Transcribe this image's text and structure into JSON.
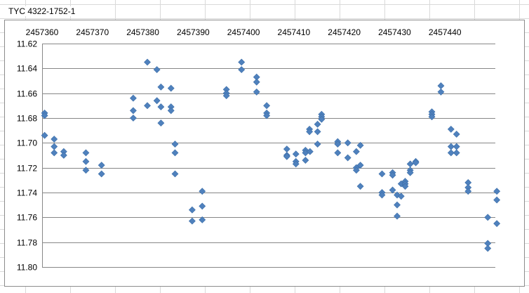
{
  "sheet": {
    "title_cell": "TYC 4322-1752-1"
  },
  "chart_data": {
    "type": "scatter",
    "title": "",
    "xlabel": "",
    "ylabel": "",
    "xlim": [
      2457360,
      2457450
    ],
    "ylim": [
      11.62,
      11.8
    ],
    "y_reversed": true,
    "x_axis_position": "top",
    "xticks": [
      2457360,
      2457370,
      2457380,
      2457390,
      2457400,
      2457410,
      2457420,
      2457430,
      2457440
    ],
    "xtick_labels": [
      "2457360",
      "2457370",
      "2457380",
      "2457390",
      "2457400",
      "2457410",
      "2457420",
      "2457430",
      "2457440"
    ],
    "yticks": [
      11.62,
      11.64,
      11.66,
      11.68,
      11.7,
      11.72,
      11.74,
      11.76,
      11.78,
      11.8
    ],
    "ytick_labels": [
      "11.62",
      "11.64",
      "11.66",
      "11.68",
      "11.70",
      "11.72",
      "11.74",
      "11.76",
      "11.78",
      "11.80"
    ],
    "grid": "horizontal",
    "legend": "none",
    "marker": "diamond",
    "color": "#4f81bd",
    "series": [
      {
        "points": [
          [
            2457360.5,
            11.676
          ],
          [
            2457360.5,
            11.678
          ],
          [
            2457360.5,
            11.694
          ],
          [
            2457362.4,
            11.697
          ],
          [
            2457362.4,
            11.703
          ],
          [
            2457362.4,
            11.708
          ],
          [
            2457364.3,
            11.707
          ],
          [
            2457364.3,
            11.71
          ],
          [
            2457368.7,
            11.708
          ],
          [
            2457368.7,
            11.715
          ],
          [
            2457368.7,
            11.722
          ],
          [
            2457371.8,
            11.718
          ],
          [
            2457371.8,
            11.725
          ],
          [
            2457378.1,
            11.664
          ],
          [
            2457378.1,
            11.674
          ],
          [
            2457378.1,
            11.68
          ],
          [
            2457380.9,
            11.635
          ],
          [
            2457380.9,
            11.67
          ],
          [
            2457382.8,
            11.641
          ],
          [
            2457382.8,
            11.666
          ],
          [
            2457383.6,
            11.655
          ],
          [
            2457383.6,
            11.671
          ],
          [
            2457383.6,
            11.684
          ],
          [
            2457385.6,
            11.656
          ],
          [
            2457385.6,
            11.671
          ],
          [
            2457385.6,
            11.674
          ],
          [
            2457386.4,
            11.701
          ],
          [
            2457386.4,
            11.708
          ],
          [
            2457386.4,
            11.725
          ],
          [
            2457389.8,
            11.754
          ],
          [
            2457389.8,
            11.763
          ],
          [
            2457391.8,
            11.739
          ],
          [
            2457391.8,
            11.751
          ],
          [
            2457391.8,
            11.762
          ],
          [
            2457396.6,
            11.657
          ],
          [
            2457396.6,
            11.66
          ],
          [
            2457396.6,
            11.662
          ],
          [
            2457399.6,
            11.635
          ],
          [
            2457399.6,
            11.641
          ],
          [
            2457402.6,
            11.647
          ],
          [
            2457402.6,
            11.651
          ],
          [
            2457402.6,
            11.659
          ],
          [
            2457404.6,
            11.67
          ],
          [
            2457404.6,
            11.676
          ],
          [
            2457404.6,
            11.678
          ],
          [
            2457408.6,
            11.705
          ],
          [
            2457408.6,
            11.71
          ],
          [
            2457408.6,
            11.711
          ],
          [
            2457410.4,
            11.709
          ],
          [
            2457410.4,
            11.715
          ],
          [
            2457410.4,
            11.717
          ],
          [
            2457412.3,
            11.706
          ],
          [
            2457412.3,
            11.708
          ],
          [
            2457412.3,
            11.714
          ],
          [
            2457413.2,
            11.707
          ],
          [
            2457413.1,
            11.689
          ],
          [
            2457413.1,
            11.691
          ],
          [
            2457414.7,
            11.685
          ],
          [
            2457414.7,
            11.691
          ],
          [
            2457414.7,
            11.701
          ],
          [
            2457415.5,
            11.677
          ],
          [
            2457415.5,
            11.679
          ],
          [
            2457415.5,
            11.681
          ],
          [
            2457418.7,
            11.699
          ],
          [
            2457418.7,
            11.701
          ],
          [
            2457418.7,
            11.708
          ],
          [
            2457420.7,
            11.7
          ],
          [
            2457420.7,
            11.712
          ],
          [
            2457422.4,
            11.707
          ],
          [
            2457422.4,
            11.72
          ],
          [
            2457422.4,
            11.722
          ],
          [
            2457423.2,
            11.702
          ],
          [
            2457423.2,
            11.718
          ],
          [
            2457423.2,
            11.735
          ],
          [
            2457427.5,
            11.725
          ],
          [
            2457427.5,
            11.74
          ],
          [
            2457427.5,
            11.742
          ],
          [
            2457429.6,
            11.724
          ],
          [
            2457429.6,
            11.726
          ],
          [
            2457429.6,
            11.738
          ],
          [
            2457430.5,
            11.742
          ],
          [
            2457430.5,
            11.75
          ],
          [
            2457430.5,
            11.759
          ],
          [
            2457431.3,
            11.733
          ],
          [
            2457431.3,
            11.743
          ],
          [
            2457432.1,
            11.731
          ],
          [
            2457432.1,
            11.733
          ],
          [
            2457432.1,
            11.735
          ],
          [
            2457433.1,
            11.717
          ],
          [
            2457433.1,
            11.722
          ],
          [
            2457433.1,
            11.724
          ],
          [
            2457434.2,
            11.715
          ],
          [
            2457434.2,
            11.716
          ],
          [
            2457437.4,
            11.675
          ],
          [
            2457437.4,
            11.677
          ],
          [
            2457437.4,
            11.679
          ],
          [
            2457439.2,
            11.654
          ],
          [
            2457439.2,
            11.659
          ],
          [
            2457441.2,
            11.689
          ],
          [
            2457441.2,
            11.703
          ],
          [
            2457441.2,
            11.708
          ],
          [
            2457442.3,
            11.693
          ],
          [
            2457442.3,
            11.703
          ],
          [
            2457442.3,
            11.708
          ],
          [
            2457444.6,
            11.732
          ],
          [
            2457444.6,
            11.736
          ],
          [
            2457444.6,
            11.739
          ],
          [
            2457448.5,
            11.76
          ],
          [
            2457448.5,
            11.781
          ],
          [
            2457448.5,
            11.785
          ],
          [
            2457450.3,
            11.739
          ],
          [
            2457450.3,
            11.746
          ],
          [
            2457450.3,
            11.765
          ]
        ]
      }
    ]
  }
}
